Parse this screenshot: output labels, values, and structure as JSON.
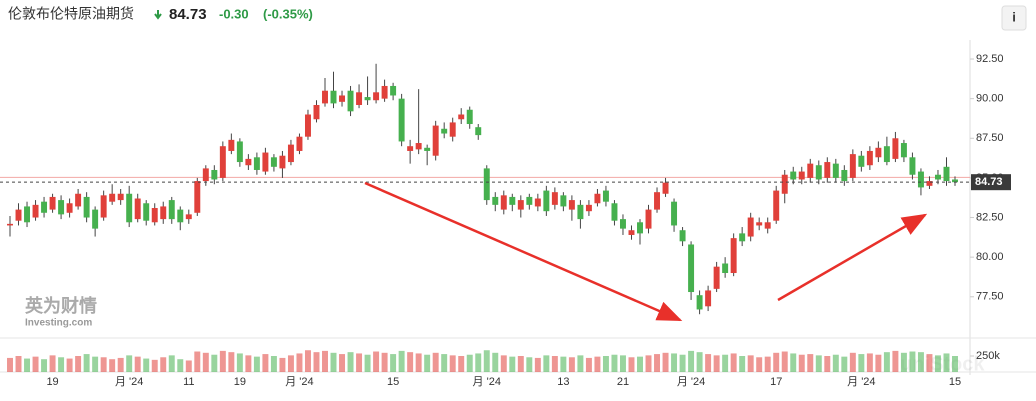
{
  "header": {
    "title": "伦敦布伦特原油期货",
    "price": "84.73",
    "change": "-0.30",
    "change_pct": "(-0.35%)",
    "info": "i"
  },
  "watermark": {
    "brand": "英为财情",
    "site": "Investing.com",
    "overlay": "uniStock"
  },
  "chart_data": {
    "type": "candlestick",
    "up_color": "#e0403a",
    "down_color": "#46b04e",
    "ylim": [
      74.9,
      93.7
    ],
    "yticks": [
      {
        "value": 77.5,
        "label": "77.50"
      },
      {
        "value": 80,
        "label": "80.00"
      },
      {
        "value": 82.5,
        "label": "82.50"
      },
      {
        "value": 85,
        "label": "85.00"
      },
      {
        "value": 87.5,
        "label": "87.50"
      },
      {
        "value": 90,
        "label": "90.00"
      },
      {
        "value": 92.5,
        "label": "92.50"
      }
    ],
    "reference_line": 85.03,
    "xticks": [
      {
        "value": 5,
        "label": "19"
      },
      {
        "value": 14,
        "label": "月 '24"
      },
      {
        "value": 21,
        "label": "11"
      },
      {
        "value": 27,
        "label": "19"
      },
      {
        "value": 34,
        "label": "月 '24"
      },
      {
        "value": 45,
        "label": "15"
      },
      {
        "value": 56,
        "label": "月 '24"
      },
      {
        "value": 65,
        "label": "13"
      },
      {
        "value": 72,
        "label": "21"
      },
      {
        "value": 80,
        "label": "月 '24"
      },
      {
        "value": 90,
        "label": "17"
      },
      {
        "value": 100,
        "label": "月 '24"
      },
      {
        "value": 111,
        "label": "15"
      }
    ],
    "open": [
      82.0,
      82.3,
      83.2,
      82.5,
      83.5,
      83.0,
      83.6,
      82.8,
      83.2,
      83.8,
      83.0,
      82.5,
      83.5,
      83.6,
      84.0,
      82.4,
      83.4,
      82.2,
      82.4,
      83.6,
      83.0,
      82.4,
      82.8,
      84.8,
      85.5,
      85.0,
      86.7,
      87.3,
      85.8,
      86.3,
      85.4,
      86.3,
      85.6,
      86.0,
      86.7,
      87.6,
      88.7,
      89.7,
      90.5,
      89.8,
      90.5,
      89.6,
      90.1,
      89.9,
      90.0,
      90.8,
      90.0,
      86.7,
      86.8,
      86.9,
      86.4,
      88.1,
      87.6,
      88.7,
      89.3,
      88.2,
      85.6,
      83.8,
      83.0,
      83.8,
      83.0,
      83.8,
      83.2,
      84.2,
      83.3,
      83.9,
      83.0,
      83.3,
      82.9,
      83.4,
      84.2,
      83.4,
      82.4,
      81.4,
      82.2,
      81.8,
      83.0,
      84.0,
      83.5,
      81.7,
      80.8,
      77.6,
      76.9,
      78.0,
      79.6,
      79.0,
      81.5,
      81.3,
      82.0,
      81.8,
      82.3,
      84.0,
      85.4,
      84.9,
      85.0,
      85.8,
      85.0,
      85.9,
      85.5,
      85.0,
      86.4,
      85.8,
      86.3,
      87.0,
      86.2,
      87.2,
      86.3,
      85.4,
      84.5,
      85.2,
      85.7,
      84.9
    ],
    "high": [
      82.6,
      83.4,
      83.5,
      83.6,
      83.8,
      84.0,
      83.9,
      83.7,
      84.3,
      84.1,
      83.2,
      84.2,
      84.6,
      84.3,
      84.5,
      84.0,
      83.6,
      83.4,
      83.5,
      83.8,
      83.2,
      83.0,
      85.0,
      85.8,
      85.8,
      87.3,
      87.8,
      87.5,
      86.5,
      86.6,
      86.9,
      86.5,
      86.7,
      87.4,
      87.8,
      89.3,
      89.9,
      91.3,
      91.7,
      90.5,
      90.8,
      90.9,
      91.4,
      92.2,
      91.2,
      91.0,
      90.3,
      87.4,
      90.6,
      87.1,
      88.6,
      88.5,
      88.8,
      89.4,
      89.5,
      88.4,
      85.8,
      84.1,
      84.2,
      84.0,
      83.9,
      84.0,
      84.0,
      84.5,
      84.4,
      84.1,
      83.9,
      83.6,
      83.6,
      84.3,
      84.5,
      83.6,
      82.7,
      82.0,
      82.4,
      83.3,
      84.4,
      85.0,
      83.7,
      81.9,
      81.0,
      77.9,
      78.2,
      79.7,
      80.0,
      81.5,
      81.9,
      82.8,
      82.5,
      82.5,
      84.5,
      85.5,
      85.7,
      85.7,
      86.2,
      86.1,
      86.3,
      86.2,
      85.8,
      86.8,
      86.7,
      87.0,
      87.3,
      87.6,
      87.9,
      87.4,
      86.6,
      85.6,
      85.1,
      85.5,
      86.3,
      85.1
    ],
    "low": [
      81.3,
      82.0,
      81.9,
      82.3,
      82.5,
      82.8,
      82.4,
      82.5,
      83.0,
      82.2,
      81.3,
      82.3,
      83.3,
      83.3,
      81.9,
      82.2,
      82.0,
      82.0,
      82.1,
      82.1,
      81.7,
      82.1,
      82.6,
      84.5,
      84.6,
      84.8,
      86.5,
      85.7,
      85.5,
      85.2,
      85.2,
      85.4,
      85.0,
      85.8,
      86.5,
      87.4,
      88.5,
      89.5,
      89.4,
      89.5,
      88.9,
      89.4,
      89.6,
      89.7,
      89.8,
      89.9,
      87.0,
      85.9,
      86.5,
      85.8,
      86.1,
      87.5,
      87.3,
      88.4,
      88.1,
      87.4,
      83.3,
      82.9,
      82.7,
      82.9,
      82.5,
      83.0,
      82.9,
      82.6,
      83.0,
      82.9,
      82.3,
      81.8,
      82.6,
      83.2,
      83.2,
      82.0,
      81.4,
      81.1,
      80.8,
      81.5,
      82.8,
      83.8,
      81.6,
      80.7,
      77.3,
      76.4,
      76.6,
      77.8,
      78.7,
      78.8,
      80.7,
      81.0,
      81.7,
      81.5,
      82.1,
      83.4,
      84.6,
      84.6,
      84.7,
      84.6,
      84.7,
      84.7,
      84.5,
      84.8,
      85.4,
      85.5,
      86.0,
      85.8,
      86.0,
      86.0,
      84.9,
      83.9,
      84.3,
      84.6,
      84.5,
      84.5
    ],
    "close": [
      82.1,
      83.0,
      82.2,
      83.3,
      82.8,
      83.8,
      82.7,
      83.4,
      84.0,
      82.5,
      81.8,
      83.9,
      84.0,
      84.0,
      82.2,
      83.7,
      82.3,
      83.1,
      83.2,
      82.4,
      82.2,
      82.7,
      84.8,
      85.6,
      84.9,
      87.0,
      87.4,
      86.0,
      86.2,
      85.5,
      86.6,
      85.7,
      86.4,
      87.1,
      87.6,
      89.0,
      89.6,
      90.5,
      89.7,
      90.2,
      89.2,
      90.4,
      89.9,
      90.4,
      90.8,
      90.2,
      87.3,
      87.0,
      87.2,
      86.7,
      88.3,
      87.8,
      88.5,
      89.0,
      88.4,
      87.7,
      83.6,
      83.3,
      83.9,
      83.3,
      83.6,
      83.3,
      83.7,
      82.9,
      84.1,
      83.2,
      83.6,
      82.4,
      83.3,
      84.0,
      83.5,
      82.3,
      81.8,
      81.7,
      81.5,
      83.0,
      84.1,
      84.7,
      82.0,
      81.0,
      77.8,
      76.7,
      77.9,
      79.4,
      79.0,
      81.2,
      81.0,
      82.5,
      82.2,
      82.2,
      84.2,
      85.2,
      84.9,
      85.4,
      85.9,
      84.9,
      86.0,
      85.0,
      84.8,
      86.5,
      85.7,
      86.7,
      86.9,
      86.0,
      87.5,
      86.3,
      85.2,
      84.4,
      84.8,
      84.9,
      84.8,
      84.73
    ],
    "vlim": [
      0,
      500000
    ],
    "vticks": [
      {
        "value": 250000,
        "label": "250k"
      }
    ],
    "volume": [
      220000,
      250000,
      210000,
      240000,
      200000,
      260000,
      230000,
      210000,
      250000,
      280000,
      240000,
      230000,
      200000,
      220000,
      260000,
      240000,
      210000,
      190000,
      230000,
      260000,
      200000,
      180000,
      320000,
      300000,
      270000,
      330000,
      310000,
      290000,
      260000,
      240000,
      280000,
      250000,
      220000,
      260000,
      290000,
      340000,
      310000,
      330000,
      300000,
      280000,
      310000,
      290000,
      270000,
      320000,
      300000,
      280000,
      330000,
      310000,
      290000,
      270000,
      300000,
      280000,
      260000,
      250000,
      270000,
      290000,
      340000,
      300000,
      260000,
      240000,
      250000,
      230000,
      220000,
      260000,
      250000,
      240000,
      230000,
      260000,
      220000,
      240000,
      250000,
      270000,
      260000,
      230000,
      240000,
      260000,
      280000,
      300000,
      290000,
      270000,
      330000,
      310000,
      280000,
      260000,
      270000,
      290000,
      250000,
      260000,
      230000,
      240000,
      300000,
      320000,
      290000,
      270000,
      280000,
      260000,
      250000,
      270000,
      240000,
      300000,
      280000,
      290000,
      270000,
      310000,
      330000,
      300000,
      320000,
      310000,
      280000,
      260000,
      290000,
      250000
    ]
  }
}
